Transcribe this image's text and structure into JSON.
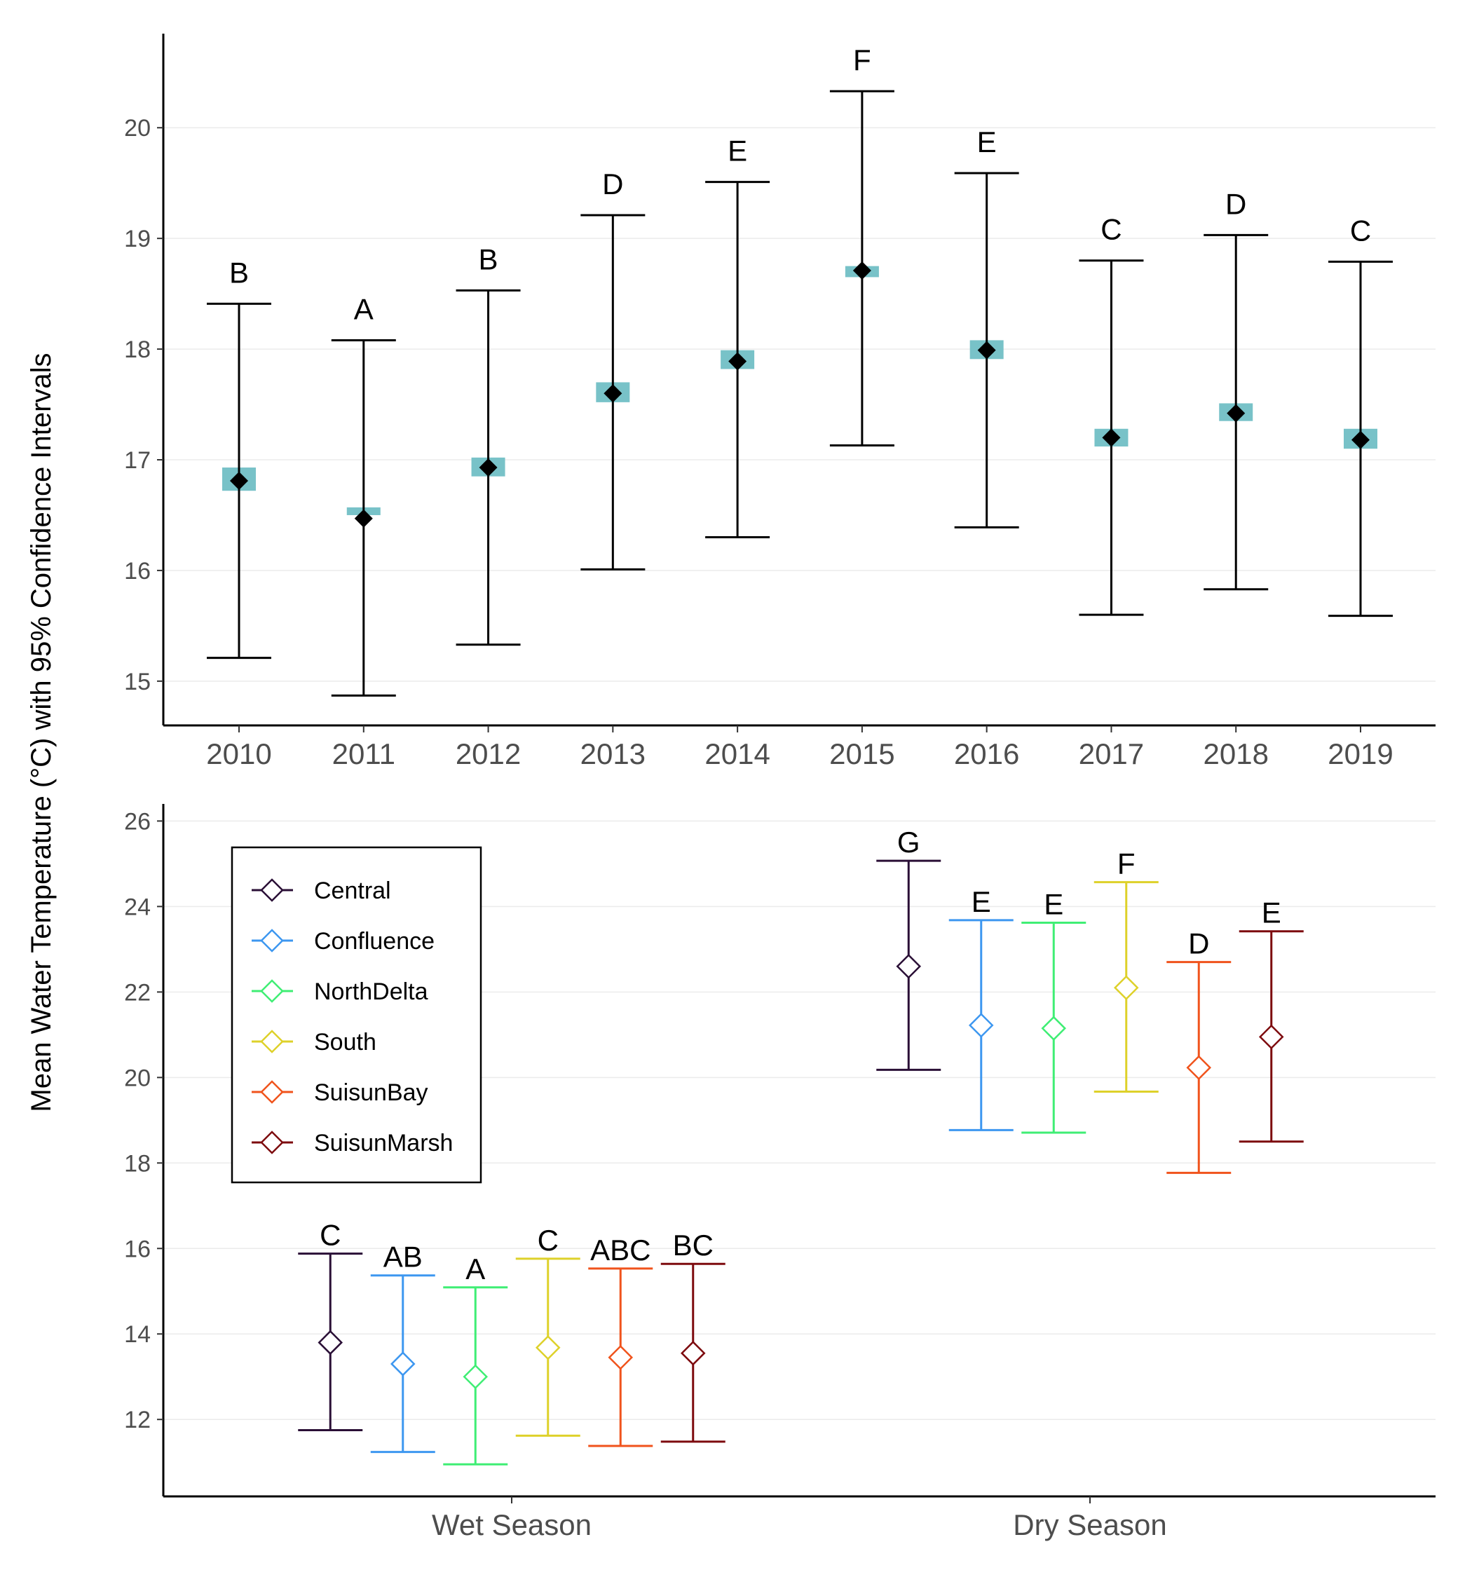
{
  "shared": {
    "ylabel": "Mean Water Temperature (°C) with 95% Confidence Intervals"
  },
  "chart_data": [
    {
      "type": "scatter",
      "title": "",
      "xlabel": "",
      "ylabel": "Mean Water Temperature (°C) with 95% Confidence Intervals",
      "ylim": [
        14.6,
        20.85
      ],
      "yticks": [
        15,
        16,
        17,
        18,
        19,
        20
      ],
      "grid": true,
      "categories": [
        "2010",
        "2011",
        "2012",
        "2013",
        "2014",
        "2015",
        "2016",
        "2017",
        "2018",
        "2019"
      ],
      "mean": [
        16.81,
        16.47,
        16.93,
        17.6,
        17.89,
        18.71,
        17.99,
        17.2,
        17.42,
        17.18
      ],
      "lower": [
        15.21,
        14.87,
        15.33,
        16.01,
        16.3,
        17.13,
        16.39,
        15.6,
        15.83,
        15.59
      ],
      "upper": [
        18.41,
        18.08,
        18.53,
        19.21,
        19.51,
        20.33,
        19.59,
        18.8,
        19.03,
        18.79
      ],
      "band_low": [
        16.72,
        16.5,
        16.85,
        17.52,
        17.82,
        18.65,
        17.91,
        17.12,
        17.35,
        17.1
      ],
      "band_high": [
        16.93,
        16.57,
        17.02,
        17.7,
        17.99,
        18.75,
        18.08,
        17.28,
        17.51,
        17.28
      ],
      "letters": [
        "B",
        "A",
        "B",
        "D",
        "E",
        "F",
        "E",
        "C",
        "D",
        "C"
      ],
      "colors": {
        "band": "#78c2c8",
        "marker": "#000000",
        "errorbar": "#000000",
        "grid": "#ebebeb"
      }
    },
    {
      "type": "scatter",
      "title": "",
      "xlabel": "",
      "ylabel": "Mean Water Temperature (°C) with 95% Confidence Intervals",
      "ylim": [
        10.2,
        26.4
      ],
      "yticks": [
        12,
        14,
        16,
        18,
        20,
        22,
        24,
        26
      ],
      "grid": true,
      "categories": [
        "Wet Season",
        "Dry Season"
      ],
      "legend": {
        "position": "top-left",
        "entries": [
          "Central",
          "Confluence",
          "NorthDelta",
          "South",
          "SuisunBay",
          "SuisunMarsh"
        ]
      },
      "series": [
        {
          "name": "Central",
          "color": "#2a0f36",
          "mean": [
            13.8,
            22.6
          ],
          "lower": [
            11.75,
            20.18
          ],
          "upper": [
            15.88,
            25.07
          ],
          "letters": [
            "C",
            "G"
          ]
        },
        {
          "name": "Confluence",
          "color": "#3d97f0",
          "mean": [
            13.3,
            21.22
          ],
          "lower": [
            11.24,
            18.77
          ],
          "upper": [
            15.37,
            23.68
          ],
          "letters": [
            "AB",
            "E"
          ]
        },
        {
          "name": "NorthDelta",
          "color": "#3fee74",
          "mean": [
            13.0,
            21.15
          ],
          "lower": [
            10.95,
            18.71
          ],
          "upper": [
            15.09,
            23.62
          ],
          "letters": [
            "A",
            "E"
          ]
        },
        {
          "name": "South",
          "color": "#ded12a",
          "mean": [
            13.68,
            22.1
          ],
          "lower": [
            11.62,
            19.67
          ],
          "upper": [
            15.76,
            24.57
          ],
          "letters": [
            "C",
            "F"
          ]
        },
        {
          "name": "SuisunBay",
          "color": "#f0531c",
          "mean": [
            13.45,
            20.23
          ],
          "lower": [
            11.38,
            17.77
          ],
          "upper": [
            15.53,
            22.7
          ],
          "letters": [
            "ABC",
            "D"
          ]
        },
        {
          "name": "SuisunMarsh",
          "color": "#7d0a0e",
          "mean": [
            13.55,
            20.95
          ],
          "lower": [
            11.48,
            18.5
          ],
          "upper": [
            15.64,
            23.42
          ],
          "letters": [
            "BC",
            "E"
          ]
        }
      ]
    }
  ]
}
